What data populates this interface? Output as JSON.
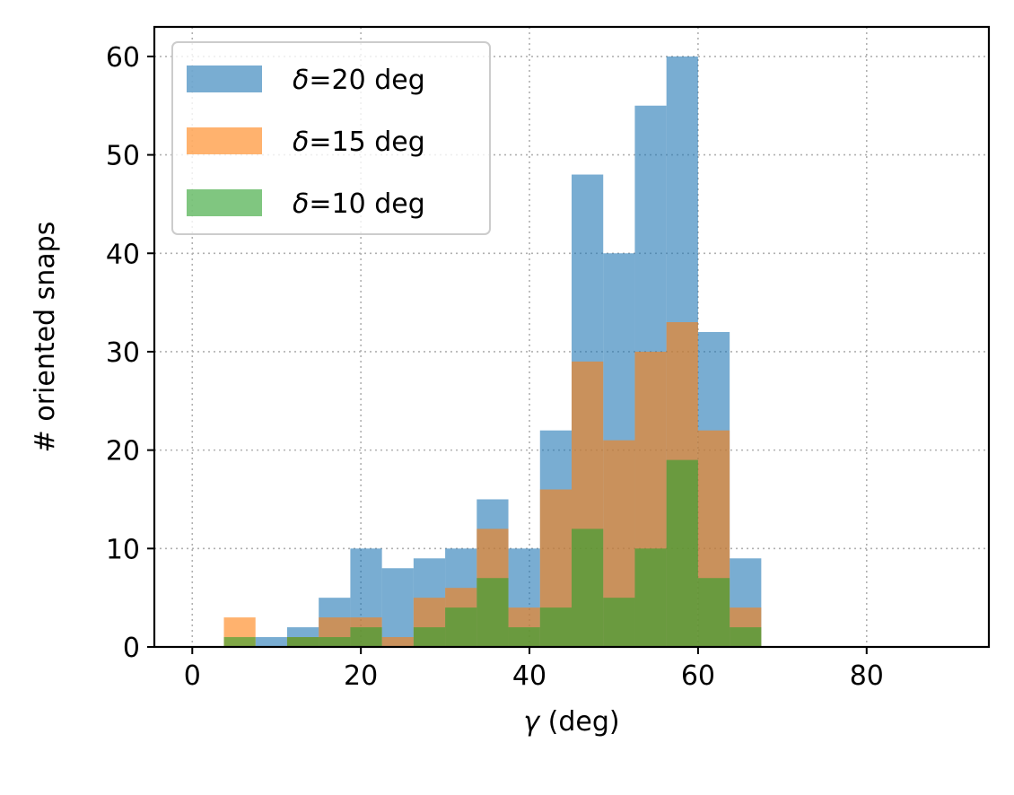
{
  "chart_data": {
    "type": "bar",
    "xlabel": "γ (deg)",
    "ylabel": "# oriented snaps",
    "xlim": [
      -4.5,
      94.5
    ],
    "ylim": [
      0,
      63
    ],
    "xticks": [
      0,
      20,
      40,
      60,
      80
    ],
    "yticks": [
      0,
      10,
      20,
      30,
      40,
      50,
      60
    ],
    "grid": true,
    "legend_position": "upper-left",
    "bin_edges": [
      3.75,
      7.5,
      11.25,
      15,
      18.75,
      22.5,
      26.25,
      30,
      33.75,
      37.5,
      41.25,
      45,
      48.75,
      52.5,
      56.25,
      60,
      63.75,
      67.5
    ],
    "series": [
      {
        "name_prefix": "δ",
        "name_suffix": "=20 deg",
        "color": "#1f77b4",
        "opacity": 0.6,
        "values": [
          0,
          1,
          2,
          5,
          10,
          8,
          9,
          10,
          15,
          10,
          22,
          48,
          40,
          55,
          60,
          32,
          9
        ]
      },
      {
        "name_prefix": "δ",
        "name_suffix": "=15 deg",
        "color": "#ff7f0e",
        "opacity": 0.6,
        "values": [
          3,
          0,
          1,
          3,
          3,
          1,
          5,
          6,
          12,
          4,
          16,
          29,
          21,
          30,
          33,
          22,
          4
        ]
      },
      {
        "name_prefix": "δ",
        "name_suffix": "=10 deg",
        "color": "#2ca02c",
        "opacity": 0.6,
        "values": [
          1,
          0,
          1,
          1,
          2,
          0,
          2,
          4,
          7,
          2,
          4,
          12,
          5,
          10,
          19,
          7,
          2
        ]
      }
    ]
  }
}
